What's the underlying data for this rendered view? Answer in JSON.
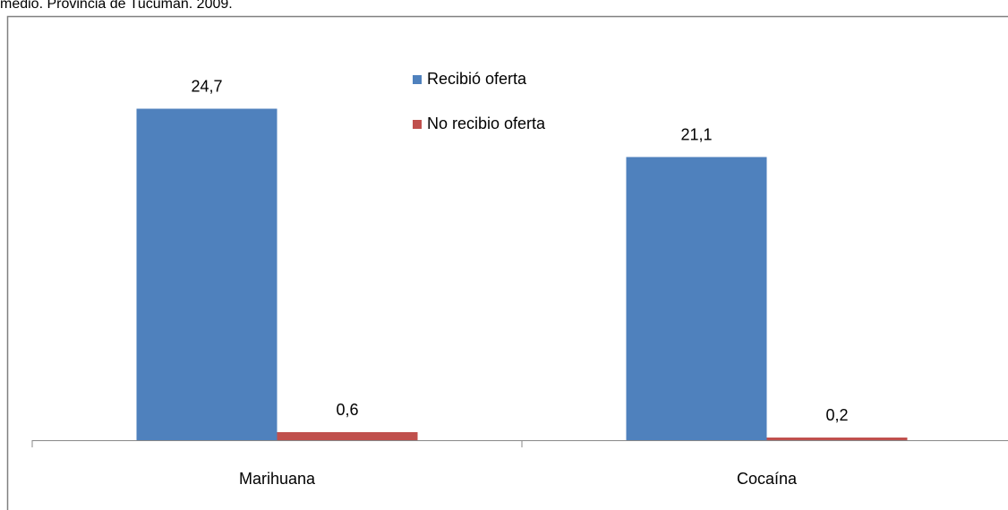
{
  "chart_data": {
    "type": "bar",
    "title": "medio. Provincia de Tucumán. 2009.",
    "categories": [
      "Marihuana",
      "Cocaína"
    ],
    "series": [
      {
        "name": "Recibió oferta",
        "color": "#4f81bd",
        "values": [
          24.7,
          21.1
        ],
        "value_labels": [
          "24,7",
          "21,1"
        ]
      },
      {
        "name": "No recibio oferta",
        "color": "#c0504d",
        "values": [
          0.6,
          0.2
        ],
        "value_labels": [
          "0,6",
          "0,2"
        ]
      }
    ],
    "ylim": [
      0,
      30
    ]
  }
}
